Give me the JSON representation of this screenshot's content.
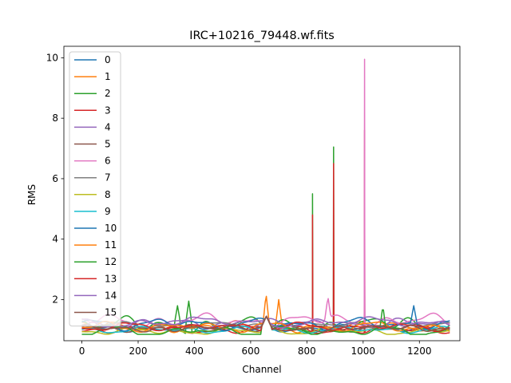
{
  "chart_data": {
    "type": "line",
    "title": "IRC+10216_79448.wf.fits",
    "xlabel": "Channel",
    "ylabel": "RMS",
    "xlim": [
      -64,
      1344
    ],
    "ylim": [
      0.64,
      10.38
    ],
    "xticks": [
      0,
      200,
      400,
      600,
      800,
      1000,
      1200
    ],
    "yticks": [
      2,
      4,
      6,
      8,
      10
    ],
    "n_channels": 1312,
    "grid": false,
    "legend_position": "upper-left",
    "series": [
      {
        "name": "0",
        "color": "#1f77b4",
        "base": 1.05,
        "amp": 0.1,
        "seed": 1,
        "spikes": []
      },
      {
        "name": "1",
        "color": "#ff7f0e",
        "base": 1.1,
        "amp": 0.15,
        "seed": 2,
        "spikes": [
          [
            655,
            2.2
          ],
          [
            700,
            2.0
          ]
        ]
      },
      {
        "name": "2",
        "color": "#2ca02c",
        "base": 1.15,
        "amp": 0.25,
        "seed": 3,
        "spikes": [
          [
            340,
            1.8
          ],
          [
            380,
            1.95
          ],
          [
            820,
            5.5
          ],
          [
            895,
            7.05
          ]
        ]
      },
      {
        "name": "3",
        "color": "#d62728",
        "base": 1.0,
        "amp": 0.12,
        "seed": 4,
        "spikes": [
          [
            820,
            4.8
          ],
          [
            895,
            6.5
          ],
          [
            1005,
            7.6
          ]
        ]
      },
      {
        "name": "4",
        "color": "#9467bd",
        "base": 1.2,
        "amp": 0.15,
        "seed": 5,
        "spikes": [
          [
            1005,
            3.9
          ]
        ]
      },
      {
        "name": "5",
        "color": "#8c564b",
        "base": 1.05,
        "amp": 0.1,
        "seed": 6,
        "spikes": []
      },
      {
        "name": "6",
        "color": "#e377c2",
        "base": 1.3,
        "amp": 0.2,
        "seed": 7,
        "spikes": [
          [
            875,
            2.1
          ],
          [
            1005,
            9.95
          ]
        ]
      },
      {
        "name": "7",
        "color": "#7f7f7f",
        "base": 1.15,
        "amp": 0.1,
        "seed": 8,
        "spikes": []
      },
      {
        "name": "8",
        "color": "#bcbd22",
        "base": 0.95,
        "amp": 0.1,
        "seed": 9,
        "spikes": []
      },
      {
        "name": "9",
        "color": "#17becf",
        "base": 1.0,
        "amp": 0.1,
        "seed": 10,
        "spikes": []
      },
      {
        "name": "10",
        "color": "#1f77b4",
        "base": 1.2,
        "amp": 0.18,
        "seed": 11,
        "spikes": [
          [
            1180,
            1.8
          ]
        ]
      },
      {
        "name": "11",
        "color": "#ff7f0e",
        "base": 1.1,
        "amp": 0.15,
        "seed": 12,
        "spikes": []
      },
      {
        "name": "12",
        "color": "#2ca02c",
        "base": 0.95,
        "amp": 0.15,
        "seed": 13,
        "spikes": [
          [
            1070,
            1.8
          ]
        ]
      },
      {
        "name": "13",
        "color": "#d62728",
        "base": 1.1,
        "amp": 0.12,
        "seed": 14,
        "spikes": []
      },
      {
        "name": "14",
        "color": "#9467bd",
        "base": 1.25,
        "amp": 0.15,
        "seed": 15,
        "spikes": []
      },
      {
        "name": "15",
        "color": "#8c564b",
        "base": 1.05,
        "amp": 0.1,
        "seed": 16,
        "spikes": []
      }
    ]
  }
}
